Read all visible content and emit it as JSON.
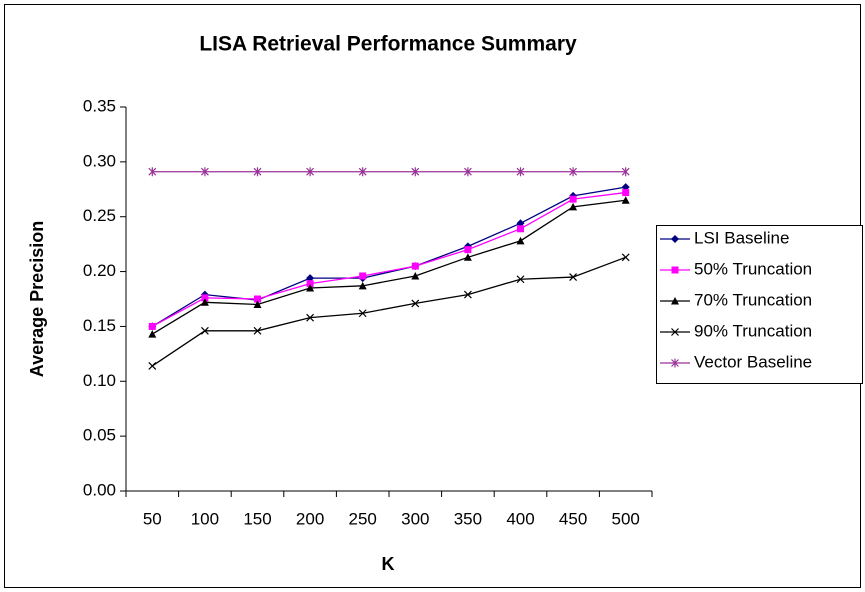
{
  "chart_data": {
    "type": "line",
    "title": "LISA Retrieval Performance Summary",
    "x_label": "K",
    "y_label": "Average Precision",
    "categories": [
      "50",
      "100",
      "150",
      "200",
      "250",
      "300",
      "350",
      "400",
      "450",
      "500"
    ],
    "series": [
      {
        "name": "LSI Baseline",
        "color": "#000080",
        "marker": "diamond",
        "values": [
          0.15,
          0.179,
          0.174,
          0.194,
          0.194,
          0.205,
          0.223,
          0.244,
          0.269,
          0.277
        ]
      },
      {
        "name": "50% Truncation",
        "color": "#ff00ff",
        "marker": "square",
        "values": [
          0.15,
          0.176,
          0.175,
          0.189,
          0.196,
          0.205,
          0.22,
          0.239,
          0.266,
          0.272
        ]
      },
      {
        "name": "70% Truncation",
        "color": "#000000",
        "marker": "triangle",
        "values": [
          0.143,
          0.172,
          0.17,
          0.185,
          0.187,
          0.196,
          0.213,
          0.228,
          0.259,
          0.265
        ]
      },
      {
        "name": "90% Truncation",
        "color": "#000000",
        "marker": "x",
        "values": [
          0.114,
          0.146,
          0.146,
          0.158,
          0.162,
          0.171,
          0.179,
          0.193,
          0.195,
          0.213
        ]
      },
      {
        "name": "Vector Baseline",
        "color": "#993399",
        "marker": "star",
        "values": [
          0.291,
          0.291,
          0.291,
          0.291,
          0.291,
          0.291,
          0.291,
          0.291,
          0.291,
          0.291
        ]
      }
    ],
    "ylim": [
      0,
      0.35
    ],
    "yticks": [
      {
        "value": 0,
        "label": "0.00"
      },
      0.05,
      {
        "value": 0.1,
        "label": "0.10"
      },
      0.15,
      {
        "value": 0.2,
        "label": "0.20"
      },
      0.25,
      {
        "value": 0.3,
        "label": "0.30"
      },
      0.35
    ],
    "grid": false,
    "legend": "right"
  }
}
